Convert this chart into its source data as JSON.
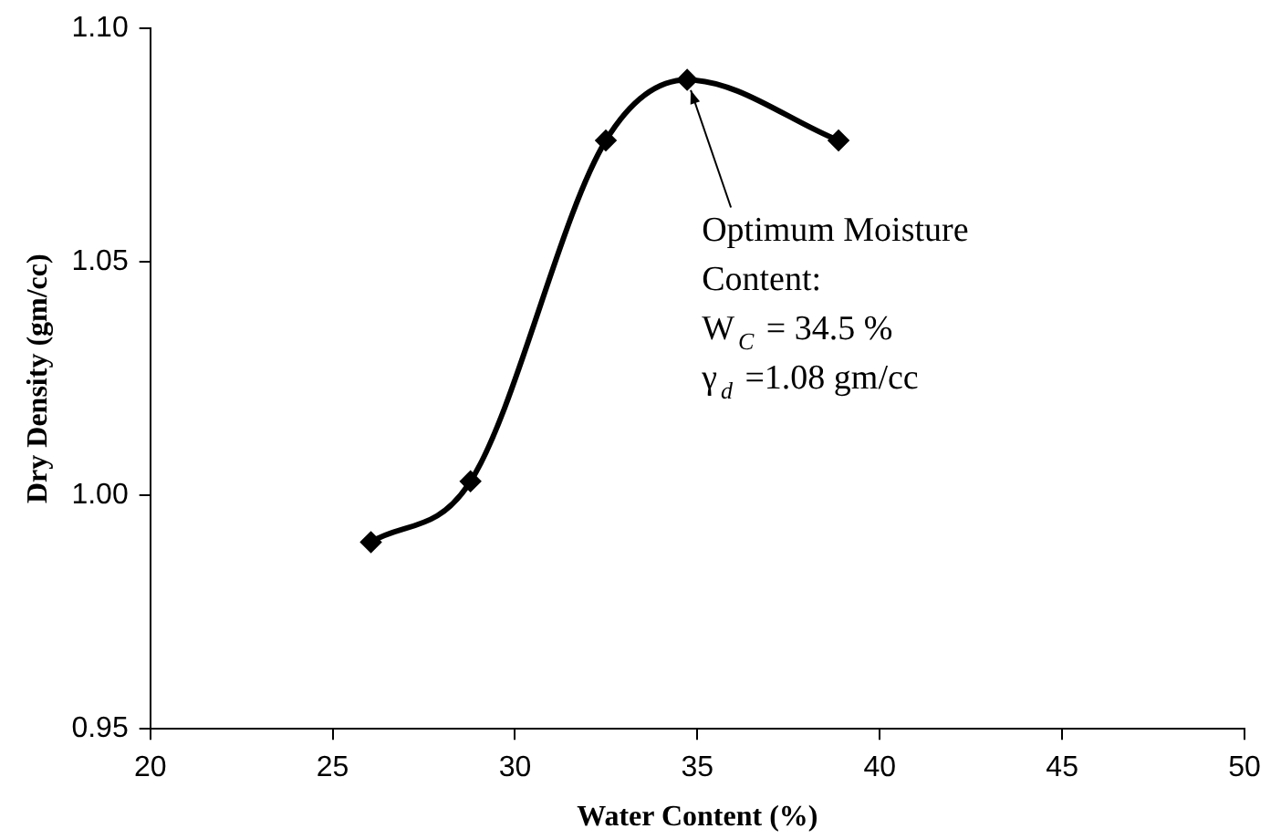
{
  "chart_data": {
    "type": "line",
    "xlabel": "Water Content (%)",
    "ylabel": "Dry Density (gm/cc)",
    "x": [
      26.05,
      28.78,
      32.49,
      34.72,
      38.87
    ],
    "series": [
      {
        "color": "#000000",
        "values": [
          0.99,
          1.003,
          1.076,
          1.089,
          1.076
        ]
      }
    ],
    "xlim": [
      20,
      50
    ],
    "xticks": [
      20,
      25,
      30,
      35,
      40,
      45,
      50
    ],
    "ylim": [
      0.95,
      1.1
    ],
    "yticks": [
      {
        "value": 0.95,
        "label": "0.95"
      },
      {
        "value": 1.0,
        "label": "1.00"
      },
      {
        "value": 1.05,
        "label": "1.05"
      },
      {
        "value": 1.1,
        "label": "1.10"
      }
    ],
    "grid": false,
    "legend": false,
    "marker": "diamond",
    "line_style": "solid",
    "annotations": [
      "Optimum Moisture\nContent:\nW$_{C}$ = 34.5 %\nγ$_{d}$ =1.08 gm/cc"
    ]
  }
}
